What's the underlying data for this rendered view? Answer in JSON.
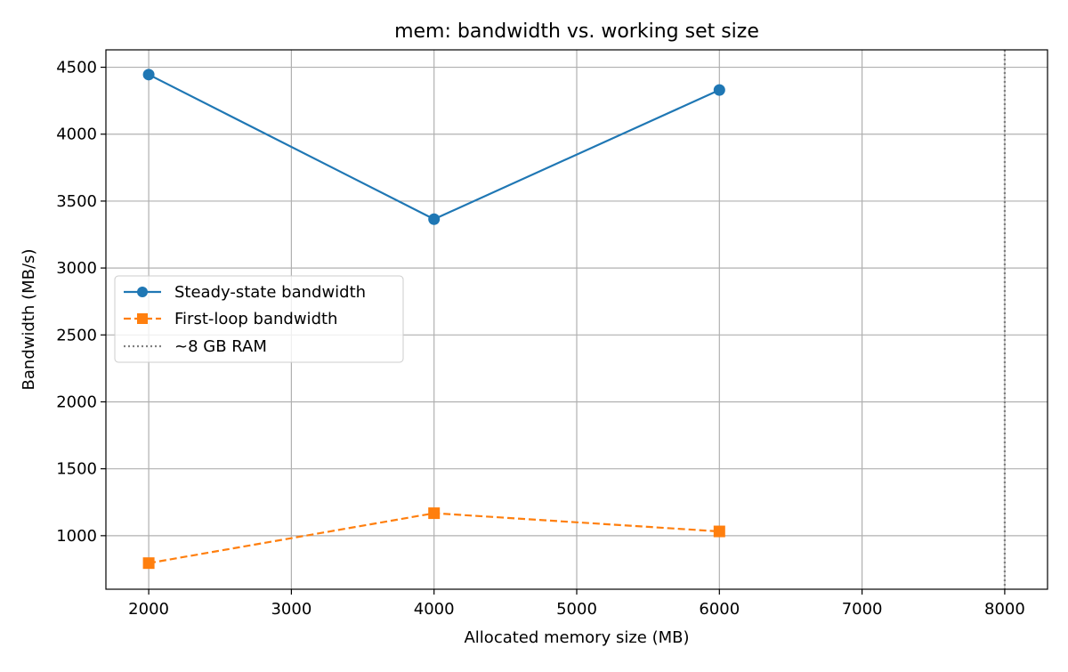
{
  "chart_data": {
    "type": "line",
    "title": "mem: bandwidth vs. working set size",
    "xlabel": "Allocated memory size (MB)",
    "ylabel": "Bandwidth (MB/s)",
    "xlim": [
      1700,
      8300
    ],
    "ylim": [
      600,
      4630
    ],
    "xticks": [
      2000,
      3000,
      4000,
      5000,
      6000,
      7000,
      8000
    ],
    "yticks": [
      1000,
      1500,
      2000,
      2500,
      3000,
      3500,
      4000,
      4500
    ],
    "grid": true,
    "legend_position": "center-left",
    "series": [
      {
        "name": "Steady-state bandwidth",
        "color": "#1f77b4",
        "marker": "circle",
        "linestyle": "solid",
        "x": [
          2000,
          4000,
          6000
        ],
        "y": [
          4445,
          3365,
          4330
        ]
      },
      {
        "name": "First-loop bandwidth",
        "color": "#ff7f0e",
        "marker": "square",
        "linestyle": "dashed",
        "x": [
          2000,
          4000,
          6000
        ],
        "y": [
          795,
          1168,
          1032
        ]
      }
    ],
    "vlines": [
      {
        "name": "~8 GB RAM",
        "x": 8000,
        "color": "#808080",
        "linestyle": "dotted"
      }
    ]
  }
}
